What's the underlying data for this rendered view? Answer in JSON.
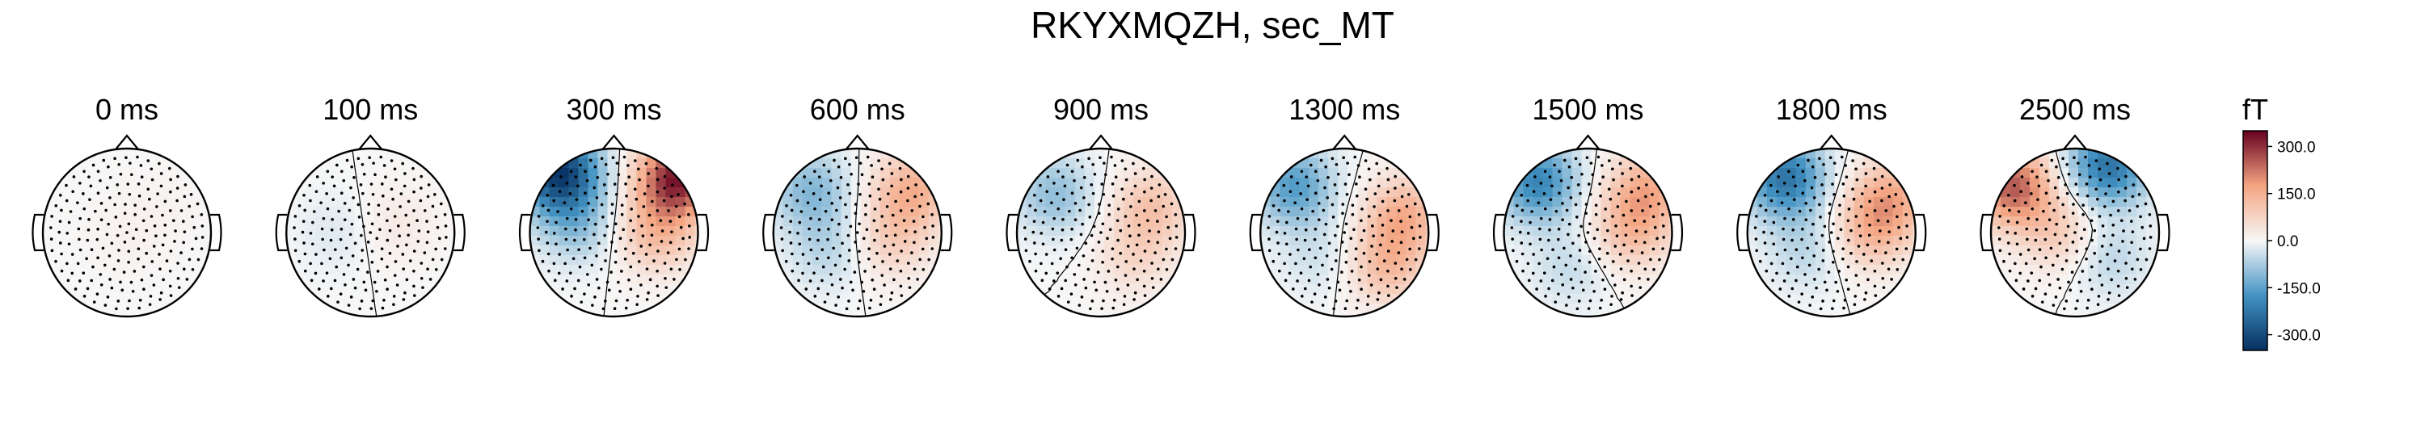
{
  "figure": {
    "title": "RKYXMQZH, sec_MT",
    "colorbar_unit": "fT"
  },
  "chart_data": {
    "type": "heatmap",
    "title": "RKYXMQZH, sec_MT",
    "panel_labels": [
      "0 ms",
      "100 ms",
      "300 ms",
      "600 ms",
      "900 ms",
      "1300 ms",
      "1500 ms",
      "1800 ms",
      "2500 ms"
    ],
    "colorbar": {
      "label": "fT",
      "ticks": [
        300.0,
        150.0,
        0.0,
        -150.0,
        -300.0
      ],
      "tick_labels": [
        "300.0",
        "150.0",
        "0.0",
        "-150.0",
        "-300.0"
      ],
      "vlim": [
        -350,
        350
      ],
      "colormap": "RdBu_r",
      "colors": {
        "neg_max": "#053061",
        "neg_mid": "#4393c3",
        "zero": "#f7f7f7",
        "pos_mid": "#f4a582",
        "pos_max": "#67001f"
      }
    },
    "sensor_layout": "MEG magnetometers (top view, nose up)",
    "panels": [
      {
        "time_ms": 0,
        "sources": [
          {
            "x": 0.0,
            "y": 0.0,
            "a": 12
          },
          {
            "x": 0.5,
            "y": 0.3,
            "a": 8
          }
        ]
      },
      {
        "time_ms": 100,
        "sources": [
          {
            "x": 0.3,
            "y": 0.1,
            "a": 30
          },
          {
            "x": -0.4,
            "y": 0.0,
            "a": -25
          }
        ]
      },
      {
        "time_ms": 300,
        "sources": [
          {
            "x": -0.65,
            "y": 0.72,
            "a": -330
          },
          {
            "x": 0.75,
            "y": 0.65,
            "a": 320
          },
          {
            "x": 0.5,
            "y": 0.0,
            "a": 120
          },
          {
            "x": -0.45,
            "y": 0.1,
            "a": -90
          }
        ]
      },
      {
        "time_ms": 600,
        "sources": [
          {
            "x": -0.55,
            "y": 0.5,
            "a": -110
          },
          {
            "x": 0.65,
            "y": 0.5,
            "a": 150
          },
          {
            "x": 0.4,
            "y": -0.1,
            "a": 80
          },
          {
            "x": -0.35,
            "y": -0.2,
            "a": -60
          }
        ]
      },
      {
        "time_ms": 900,
        "sources": [
          {
            "x": -0.55,
            "y": 0.45,
            "a": -100
          },
          {
            "x": 0.6,
            "y": 0.3,
            "a": 110
          },
          {
            "x": 0.4,
            "y": -0.3,
            "a": 60
          }
        ]
      },
      {
        "time_ms": 1300,
        "sources": [
          {
            "x": -0.6,
            "y": 0.55,
            "a": -160
          },
          {
            "x": 0.7,
            "y": 0.2,
            "a": 150
          },
          {
            "x": 0.5,
            "y": -0.4,
            "a": 120
          },
          {
            "x": -0.3,
            "y": -0.3,
            "a": -40
          }
        ]
      },
      {
        "time_ms": 1500,
        "sources": [
          {
            "x": -0.6,
            "y": 0.6,
            "a": -200
          },
          {
            "x": 0.7,
            "y": 0.5,
            "a": 150
          },
          {
            "x": 0.5,
            "y": 0.0,
            "a": 110
          },
          {
            "x": -0.2,
            "y": -0.4,
            "a": -50
          }
        ]
      },
      {
        "time_ms": 1800,
        "sources": [
          {
            "x": -0.55,
            "y": 0.65,
            "a": -230
          },
          {
            "x": 0.7,
            "y": 0.4,
            "a": 150
          },
          {
            "x": 0.45,
            "y": 0.0,
            "a": 110
          },
          {
            "x": -0.3,
            "y": -0.2,
            "a": -60
          }
        ]
      },
      {
        "time_ms": 2500,
        "sources": [
          {
            "x": -0.75,
            "y": 0.55,
            "a": 250
          },
          {
            "x": 0.4,
            "y": 0.8,
            "a": -230
          },
          {
            "x": -0.2,
            "y": 0.0,
            "a": 90
          },
          {
            "x": 0.4,
            "y": -0.3,
            "a": -60
          }
        ]
      }
    ]
  }
}
